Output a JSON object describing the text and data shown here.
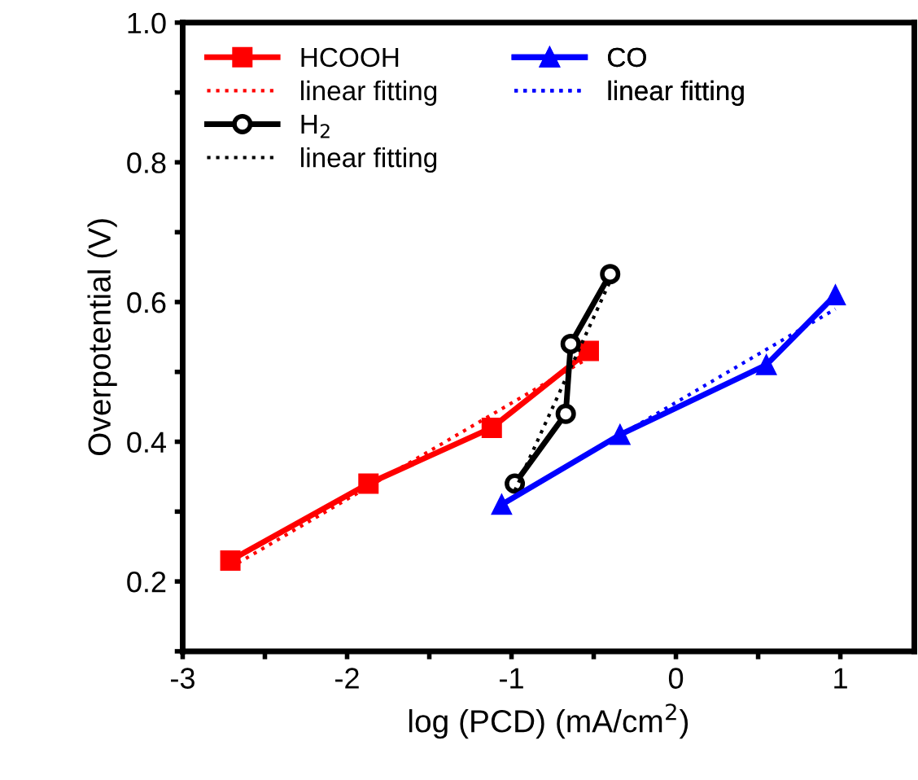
{
  "chart_data": {
    "type": "line",
    "xlabel": "log (PCD) (mA/cm$^{2}$)",
    "ylabel": "Overpotential (V)",
    "xlim": [
      -3,
      1.45
    ],
    "xticks": [
      -3,
      {
        "value": -2.5,
        "label": null
      },
      -2,
      {
        "value": -1.5,
        "label": null
      },
      -1,
      {
        "value": -0.5,
        "label": null
      },
      0,
      {
        "value": 0.5,
        "label": null
      },
      1
    ],
    "ylim": [
      0.1,
      1.0
    ],
    "yticks": [
      {
        "value": 0.1,
        "label": null
      },
      0.2,
      {
        "value": 0.3,
        "label": null
      },
      0.4,
      {
        "value": 0.5,
        "label": null
      },
      0.6,
      {
        "value": 0.7,
        "label": null
      },
      0.8,
      {
        "value": 0.9,
        "label": null
      },
      {
        "value": 1.0,
        "label": "1.0"
      }
    ],
    "grid": false,
    "legend": "top left",
    "series": [
      {
        "name": "HCOOH",
        "color": "#ff0000",
        "marker": "square",
        "line_style": "solid",
        "x": [
          -2.71,
          -1.87,
          -1.12,
          -0.53
        ],
        "values": [
          0.23,
          0.34,
          0.42,
          0.53
        ]
      },
      {
        "name": "linear fitting",
        "color": "#ff0000",
        "marker": "none",
        "line_style": "dotted",
        "x": [
          -2.71,
          -0.53
        ],
        "values": [
          0.22,
          0.52
        ]
      },
      {
        "name": "H$_{2}$",
        "color": "#000000",
        "marker": "circle",
        "line_style": "solid",
        "x": [
          -0.98,
          -0.67,
          -0.64,
          -0.4
        ],
        "values": [
          0.34,
          0.44,
          0.54,
          0.64
        ]
      },
      {
        "name": "linear fitting",
        "color": "#000000",
        "marker": "none",
        "line_style": "dotted",
        "x": [
          -0.98,
          -0.4
        ],
        "values": [
          0.33,
          0.63
        ]
      },
      {
        "name": "CO",
        "color": "#0000ff",
        "marker": "triangle",
        "line_style": "solid",
        "x": [
          -1.06,
          -0.34,
          0.55,
          0.97
        ],
        "values": [
          0.31,
          0.41,
          0.51,
          0.61
        ]
      },
      {
        "name": "linear fitting",
        "color": "#0000ff",
        "marker": "none",
        "line_style": "dotted",
        "x": [
          -1.06,
          0.97
        ],
        "values": [
          0.31,
          0.59
        ]
      }
    ]
  }
}
